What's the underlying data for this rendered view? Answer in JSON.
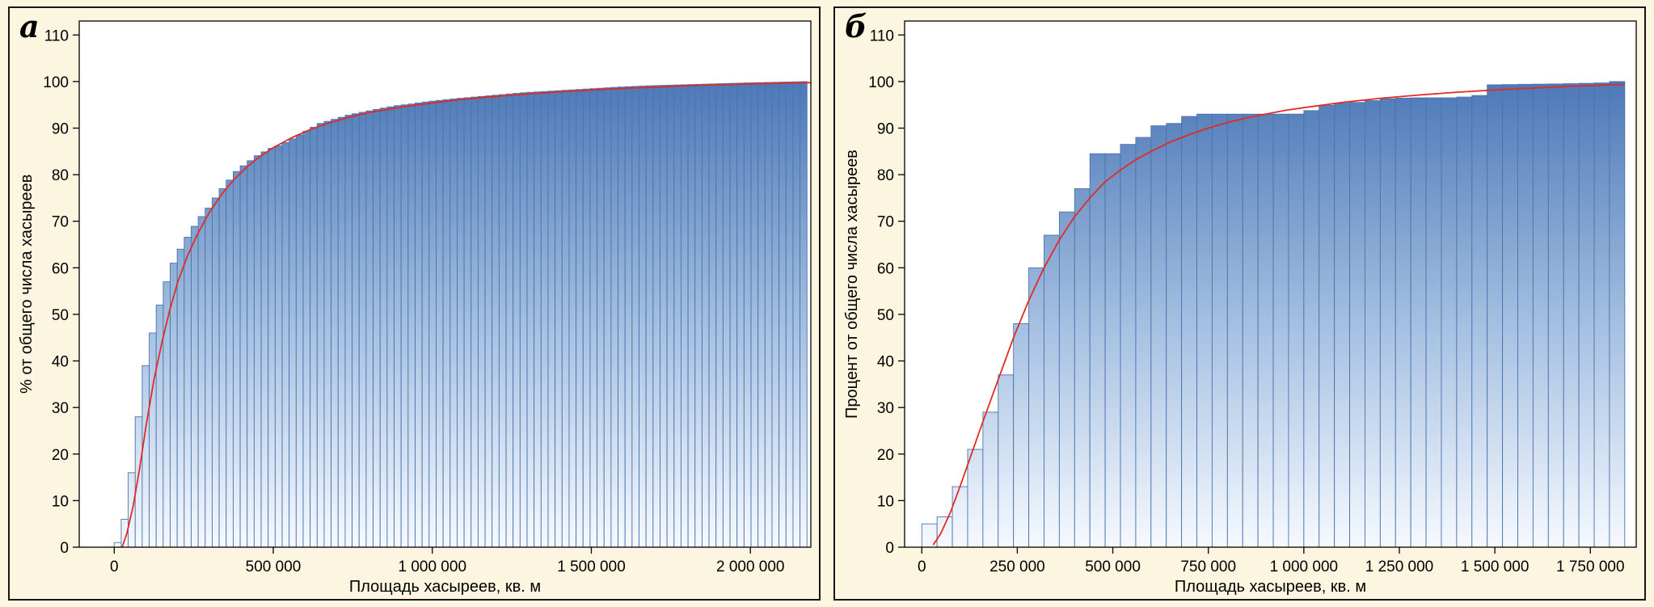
{
  "figure": {
    "background_color": "#fcf5e0",
    "panel_border_color": "#161616"
  },
  "chart_data": [
    {
      "type": "cumulative-histogram",
      "panel_label": "а",
      "xlabel": "Площадь хасыреев, кв. м",
      "ylabel": "% от общего числа хасыреев",
      "x_range": [
        -110000,
        2190000
      ],
      "y_range": [
        0,
        113
      ],
      "y_ticks": [
        0,
        10,
        20,
        30,
        40,
        50,
        60,
        70,
        80,
        90,
        100,
        110
      ],
      "x_ticks": [
        {
          "value": 0,
          "label": "0"
        },
        {
          "value": 500000,
          "label": "500 000"
        },
        {
          "value": 1000000,
          "label": "1 000 000"
        },
        {
          "value": 1500000,
          "label": "1 500 000"
        },
        {
          "value": 2000000,
          "label": "2 000 000"
        }
      ],
      "grid": false,
      "legend": "none",
      "bin_start": 0,
      "bin_width": 22000,
      "n_bins": 99,
      "cumulative_percent_points": [
        [
          0,
          0
        ],
        [
          22000,
          1
        ],
        [
          44000,
          6
        ],
        [
          66000,
          16
        ],
        [
          88000,
          28
        ],
        [
          110000,
          39
        ],
        [
          132000,
          46
        ],
        [
          154000,
          52
        ],
        [
          176000,
          57
        ],
        [
          198000,
          61
        ],
        [
          220000,
          64
        ],
        [
          250000,
          67.5
        ],
        [
          280000,
          70.5
        ],
        [
          310000,
          73
        ],
        [
          340000,
          76
        ],
        [
          370000,
          78.5
        ],
        [
          400000,
          81
        ],
        [
          430000,
          82.5
        ],
        [
          460000,
          84
        ],
        [
          500000,
          85.5
        ],
        [
          540000,
          86.5
        ],
        [
          580000,
          88
        ],
        [
          620000,
          89.5
        ],
        [
          660000,
          91
        ],
        [
          700000,
          91.8
        ],
        [
          750000,
          92.8
        ],
        [
          800000,
          93.5
        ],
        [
          850000,
          94.2
        ],
        [
          900000,
          94.8
        ],
        [
          950000,
          95.2
        ],
        [
          1000000,
          95.7
        ],
        [
          1100000,
          96.4
        ],
        [
          1200000,
          97
        ],
        [
          1300000,
          97.6
        ],
        [
          1400000,
          98
        ],
        [
          1500000,
          98.4
        ],
        [
          1600000,
          98.8
        ],
        [
          1700000,
          99.1
        ],
        [
          1800000,
          99.3
        ],
        [
          1900000,
          99.5
        ],
        [
          2000000,
          99.7
        ],
        [
          2100000,
          99.85
        ],
        [
          2190000,
          100
        ]
      ],
      "fit_curve_points": [
        [
          25000,
          0
        ],
        [
          40000,
          3
        ],
        [
          60000,
          9
        ],
        [
          80000,
          17
        ],
        [
          100000,
          26
        ],
        [
          125000,
          36
        ],
        [
          150000,
          44
        ],
        [
          175000,
          51
        ],
        [
          200000,
          57
        ],
        [
          230000,
          62.5
        ],
        [
          260000,
          67
        ],
        [
          300000,
          72
        ],
        [
          340000,
          76
        ],
        [
          380000,
          79.2
        ],
        [
          420000,
          81.8
        ],
        [
          460000,
          84
        ],
        [
          500000,
          85.8
        ],
        [
          560000,
          88
        ],
        [
          620000,
          89.8
        ],
        [
          680000,
          91.2
        ],
        [
          740000,
          92.4
        ],
        [
          800000,
          93.3
        ],
        [
          900000,
          94.5
        ],
        [
          1000000,
          95.4
        ],
        [
          1100000,
          96.2
        ],
        [
          1200000,
          96.8
        ],
        [
          1300000,
          97.3
        ],
        [
          1400000,
          97.8
        ],
        [
          1500000,
          98.2
        ],
        [
          1600000,
          98.5
        ],
        [
          1700000,
          98.8
        ],
        [
          1800000,
          99.1
        ],
        [
          1900000,
          99.3
        ],
        [
          2000000,
          99.5
        ],
        [
          2100000,
          99.65
        ],
        [
          2190000,
          99.75
        ]
      ],
      "bar_fill_top": "#4d79b7",
      "bar_fill_mid": "#a9c3e3",
      "bar_fill_bottom": "#f6f9fe",
      "bar_stroke": "#4a74ae",
      "curve_color": "#e22b22",
      "plot_background": "#ffffff",
      "axis_color": "#000000"
    },
    {
      "type": "cumulative-histogram",
      "panel_label": "б",
      "xlabel": "Площадь хасыреев, кв. м",
      "ylabel": "Процент от общего числа хасыреев",
      "x_range": [
        -45000,
        1870000
      ],
      "y_range": [
        0,
        113
      ],
      "y_ticks": [
        0,
        10,
        20,
        30,
        40,
        50,
        60,
        70,
        80,
        90,
        100,
        110
      ],
      "x_ticks": [
        {
          "value": 0,
          "label": "0"
        },
        {
          "value": 250000,
          "label": "250 000"
        },
        {
          "value": 500000,
          "label": "500 000"
        },
        {
          "value": 750000,
          "label": "750 000"
        },
        {
          "value": 1000000,
          "label": "1 000 000"
        },
        {
          "value": 1250000,
          "label": "1 250 000"
        },
        {
          "value": 1500000,
          "label": "1 500 000"
        },
        {
          "value": 1750000,
          "label": "1 750 000"
        }
      ],
      "grid": false,
      "legend": "none",
      "bin_start": 0,
      "bin_width": 40000,
      "n_bins": 46,
      "cumulative_percent_points": [
        [
          0,
          0
        ],
        [
          20000,
          4.5
        ],
        [
          40000,
          5
        ],
        [
          60000,
          5.5
        ],
        [
          80000,
          6.5
        ],
        [
          100000,
          9
        ],
        [
          120000,
          13
        ],
        [
          140000,
          17
        ],
        [
          160000,
          21
        ],
        [
          180000,
          25
        ],
        [
          200000,
          29
        ],
        [
          220000,
          33
        ],
        [
          240000,
          37
        ],
        [
          260000,
          41
        ],
        [
          280000,
          48
        ],
        [
          300000,
          55
        ],
        [
          320000,
          60
        ],
        [
          340000,
          64
        ],
        [
          360000,
          67
        ],
        [
          380000,
          70
        ],
        [
          400000,
          72
        ],
        [
          420000,
          75
        ],
        [
          440000,
          77
        ],
        [
          460000,
          82
        ],
        [
          480000,
          84.5
        ],
        [
          520000,
          84.5
        ],
        [
          540000,
          85
        ],
        [
          560000,
          86.5
        ],
        [
          600000,
          88
        ],
        [
          620000,
          88.5
        ],
        [
          640000,
          90.5
        ],
        [
          680000,
          91
        ],
        [
          700000,
          92
        ],
        [
          720000,
          92.5
        ],
        [
          760000,
          93
        ],
        [
          1020000,
          93
        ],
        [
          1060000,
          94.5
        ],
        [
          1100000,
          95.3
        ],
        [
          1160000,
          95.5
        ],
        [
          1240000,
          96.3
        ],
        [
          1300000,
          96.5
        ],
        [
          1420000,
          96.5
        ],
        [
          1480000,
          97
        ],
        [
          1520000,
          99.3
        ],
        [
          1600000,
          99.4
        ],
        [
          1700000,
          99.5
        ],
        [
          1800000,
          99.7
        ],
        [
          1840000,
          100
        ]
      ],
      "fit_curve_points": [
        [
          30000,
          0.5
        ],
        [
          50000,
          3
        ],
        [
          75000,
          7.5
        ],
        [
          100000,
          13
        ],
        [
          130000,
          20
        ],
        [
          160000,
          27
        ],
        [
          200000,
          36
        ],
        [
          240000,
          45
        ],
        [
          280000,
          53
        ],
        [
          320000,
          60
        ],
        [
          360000,
          66
        ],
        [
          400000,
          71
        ],
        [
          440000,
          75
        ],
        [
          480000,
          78.5
        ],
        [
          520000,
          81
        ],
        [
          560000,
          83.2
        ],
        [
          600000,
          85
        ],
        [
          650000,
          87
        ],
        [
          700000,
          88.6
        ],
        [
          750000,
          90
        ],
        [
          800000,
          91.2
        ],
        [
          850000,
          92.2
        ],
        [
          900000,
          93
        ],
        [
          950000,
          93.8
        ],
        [
          1000000,
          94.4
        ],
        [
          1100000,
          95.5
        ],
        [
          1200000,
          96.4
        ],
        [
          1300000,
          97.1
        ],
        [
          1400000,
          97.7
        ],
        [
          1500000,
          98.2
        ],
        [
          1600000,
          98.6
        ],
        [
          1700000,
          99
        ],
        [
          1840000,
          99.4
        ]
      ],
      "bar_fill_top": "#4d79b7",
      "bar_fill_mid": "#a9c3e3",
      "bar_fill_bottom": "#f6f9fe",
      "bar_stroke": "#4a74ae",
      "curve_color": "#e22b22",
      "plot_background": "#ffffff",
      "axis_color": "#000000"
    }
  ]
}
